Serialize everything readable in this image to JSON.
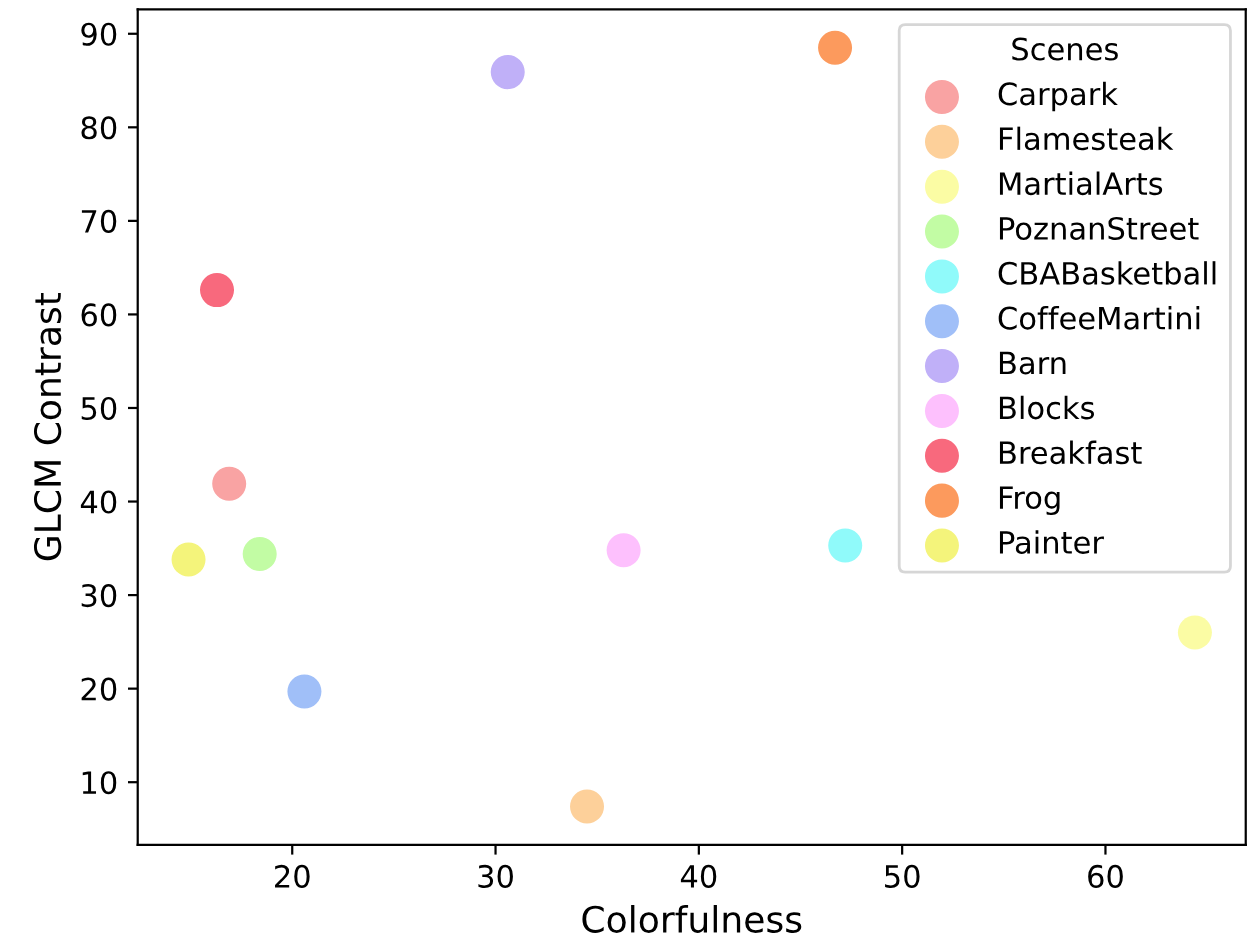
{
  "chart_data": {
    "type": "scatter",
    "xlabel": "Colorfulness",
    "ylabel": "GLCM Contrast",
    "legend_title": "Scenes",
    "legend": "top right",
    "marker": "circle",
    "grid": false,
    "xlim": [
      12.4,
      66.9
    ],
    "ylim": [
      3.3,
      92.6
    ],
    "xticks": [
      20,
      30,
      40,
      50,
      60
    ],
    "yticks": [
      10,
      20,
      30,
      40,
      50,
      60,
      70,
      80,
      90
    ],
    "series": [
      {
        "name": "Carpark",
        "color": "#f9a3a3",
        "x": [
          16.9
        ],
        "values": [
          41.9
        ]
      },
      {
        "name": "Flamesteak",
        "color": "#fdd09a",
        "x": [
          34.5
        ],
        "values": [
          7.4
        ]
      },
      {
        "name": "MartialArts",
        "color": "#fbfca4",
        "x": [
          64.4
        ],
        "values": [
          26.0
        ]
      },
      {
        "name": "PoznanStreet",
        "color": "#c2fca4",
        "x": [
          18.4
        ],
        "values": [
          34.4
        ]
      },
      {
        "name": "CBABasketball",
        "color": "#90fafa",
        "x": [
          47.2
        ],
        "values": [
          35.3
        ]
      },
      {
        "name": "CoffeeMartini",
        "color": "#a0bff8",
        "x": [
          20.6
        ],
        "values": [
          19.7
        ]
      },
      {
        "name": "Barn",
        "color": "#c0b0f8",
        "x": [
          30.6
        ],
        "values": [
          85.9
        ]
      },
      {
        "name": "Blocks",
        "color": "#fdc0fd",
        "x": [
          36.3
        ],
        "values": [
          34.8
        ]
      },
      {
        "name": "Breakfast",
        "color": "#f8697d",
        "x": [
          16.3
        ],
        "values": [
          62.6
        ]
      },
      {
        "name": "Frog",
        "color": "#fc9a5d",
        "x": [
          46.7
        ],
        "values": [
          88.5
        ]
      },
      {
        "name": "Painter",
        "color": "#f4f47b",
        "x": [
          14.9
        ],
        "values": [
          33.8
        ]
      }
    ]
  }
}
